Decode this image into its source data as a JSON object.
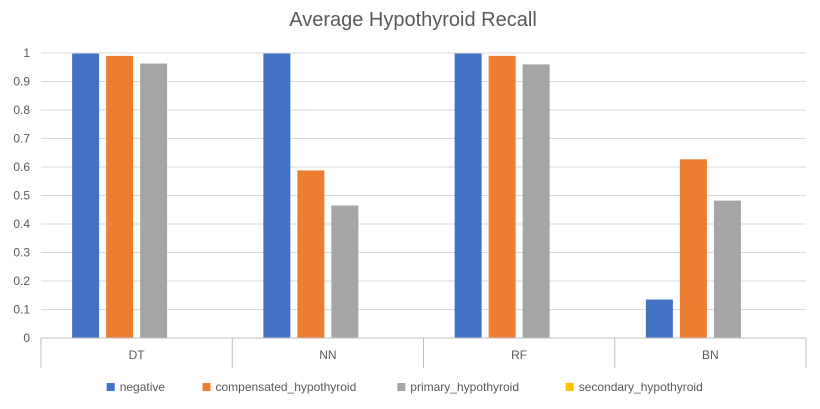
{
  "chart_data": {
    "type": "bar",
    "title": "Average Hypothyroid Recall",
    "categories": [
      "DT",
      "NN",
      "RF",
      "BN"
    ],
    "series": [
      {
        "name": "negative",
        "color": "#4472c4",
        "values": [
          0.998,
          0.998,
          0.998,
          0.135
        ]
      },
      {
        "name": "compensated_hypothyroid",
        "color": "#ed7d31",
        "values": [
          0.99,
          0.588,
          0.99,
          0.627
        ]
      },
      {
        "name": "primary_hypothyroid",
        "color": "#a5a5a5",
        "values": [
          0.963,
          0.465,
          0.96,
          0.482
        ]
      },
      {
        "name": "secondary_hypothyroid",
        "color": "#ffc000",
        "values": [
          0,
          0,
          0,
          0
        ]
      }
    ],
    "yticks": [
      "0",
      "0.1",
      "0.2",
      "0.3",
      "0.4",
      "0.5",
      "0.6",
      "0.7",
      "0.8",
      "0.9",
      "1"
    ],
    "ylim": [
      0,
      1
    ],
    "grid": true,
    "legend": "bottom"
  }
}
